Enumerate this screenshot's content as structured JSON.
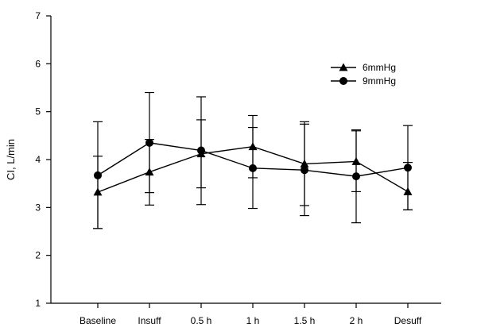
{
  "chart_data": {
    "type": "line",
    "title": "",
    "xlabel": "",
    "ylabel": "CI, L/min",
    "ylim": [
      1,
      7
    ],
    "yticks": [
      1,
      2,
      3,
      4,
      5,
      6,
      7
    ],
    "categories": [
      "Baseline",
      "Insuff",
      "0.5 h",
      "1 h",
      "1.5 h",
      "2 h",
      "Desuff"
    ],
    "legend": {
      "position": "top-right"
    },
    "series": [
      {
        "name": "6mmHg",
        "marker": "triangle",
        "values": [
          3.32,
          3.74,
          4.12,
          4.27,
          3.91,
          3.96,
          3.33
        ],
        "err_low": [
          2.56,
          3.05,
          3.41,
          3.62,
          3.04,
          3.33,
          2.95
        ],
        "err_high": [
          4.07,
          4.42,
          4.83,
          4.92,
          4.79,
          4.62,
          3.94
        ]
      },
      {
        "name": "9mmHg",
        "marker": "circle",
        "values": [
          3.67,
          4.35,
          4.19,
          3.82,
          3.78,
          3.65,
          3.83
        ],
        "err_low": [
          2.56,
          3.31,
          3.06,
          2.98,
          2.83,
          2.68,
          2.95
        ],
        "err_high": [
          4.79,
          5.4,
          5.31,
          4.67,
          4.74,
          4.6,
          4.71
        ]
      }
    ]
  }
}
